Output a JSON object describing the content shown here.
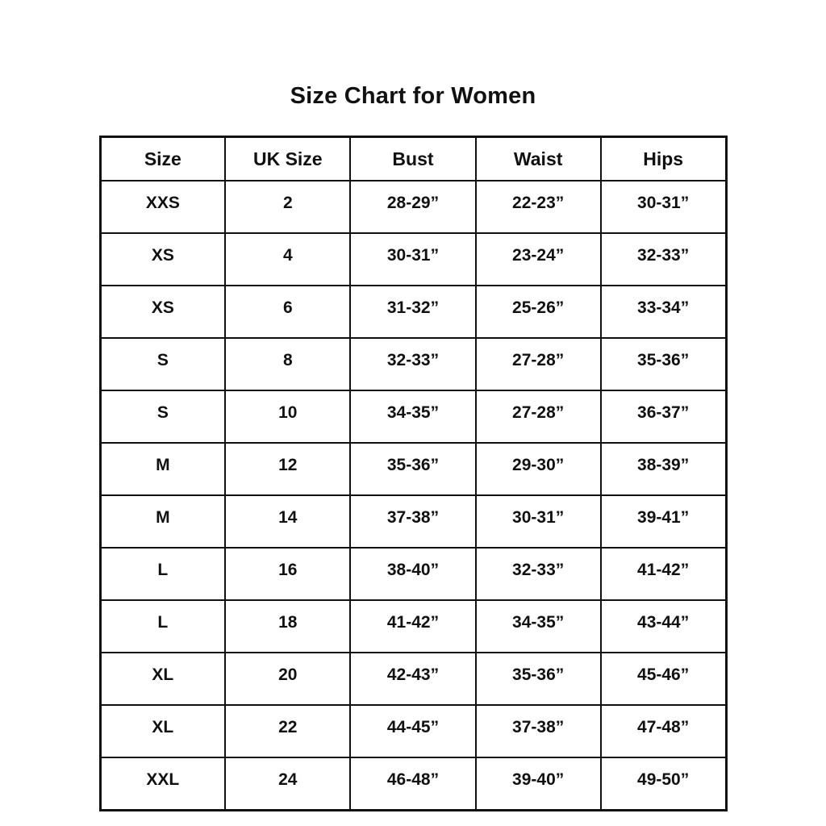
{
  "page": {
    "title": "Size Chart for Women"
  },
  "colors": {
    "text": "#111111",
    "border": "#111111",
    "background": "#ffffff"
  },
  "chart_data": {
    "type": "table",
    "title": "Size Chart for Women",
    "columns": [
      "Size",
      "UK Size",
      "Bust",
      "Waist",
      "Hips"
    ],
    "rows": [
      [
        "XXS",
        "2",
        "28-29”",
        "22-23”",
        "30-31”"
      ],
      [
        "XS",
        "4",
        "30-31”",
        "23-24”",
        "32-33”"
      ],
      [
        "XS",
        "6",
        "31-32”",
        "25-26”",
        "33-34”"
      ],
      [
        "S",
        "8",
        "32-33”",
        "27-28”",
        "35-36”"
      ],
      [
        "S",
        "10",
        "34-35”",
        "27-28”",
        "36-37”"
      ],
      [
        "M",
        "12",
        "35-36”",
        "29-30”",
        "38-39”"
      ],
      [
        "M",
        "14",
        "37-38”",
        "30-31”",
        "39-41”"
      ],
      [
        "L",
        "16",
        "38-40”",
        "32-33”",
        "41-42”"
      ],
      [
        "L",
        "18",
        "41-42”",
        "34-35”",
        "43-44”"
      ],
      [
        "XL",
        "20",
        "42-43”",
        "35-36”",
        "45-46”"
      ],
      [
        "XL",
        "22",
        "44-45”",
        "37-38”",
        "47-48”"
      ],
      [
        "XXL",
        "24",
        "46-48”",
        "39-40”",
        "49-50”"
      ]
    ],
    "layout": {
      "legend": "none",
      "grid": "full-borders",
      "header_row": true
    }
  }
}
